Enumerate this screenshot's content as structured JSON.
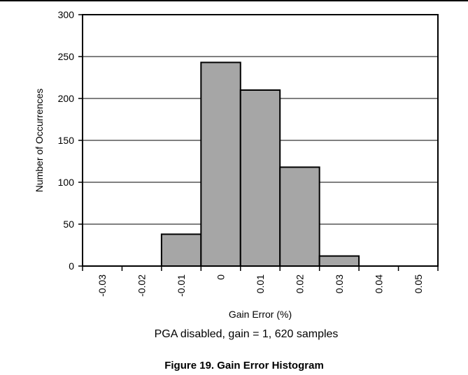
{
  "chart_data": {
    "type": "bar",
    "title": "",
    "xlabel": "Gain Error (%)",
    "ylabel": "Number of Occurrences",
    "categories": [
      "-0.03",
      "-0.02",
      "-0.01",
      "0",
      "0.01",
      "0.02",
      "0.03",
      "0.04",
      "0.05"
    ],
    "values": [
      0,
      0,
      38,
      243,
      210,
      118,
      12,
      0,
      0
    ],
    "yticks": [
      "0",
      "50",
      "100",
      "150",
      "200",
      "250",
      "300"
    ],
    "ylim": [
      0,
      300
    ],
    "grid": "horizontal",
    "legend": "none",
    "bar_color": "#a6a6a6",
    "note": "PGA disabled, gain = 1, 620 samples"
  },
  "caption": "Figure 19. Gain Error Histogram"
}
